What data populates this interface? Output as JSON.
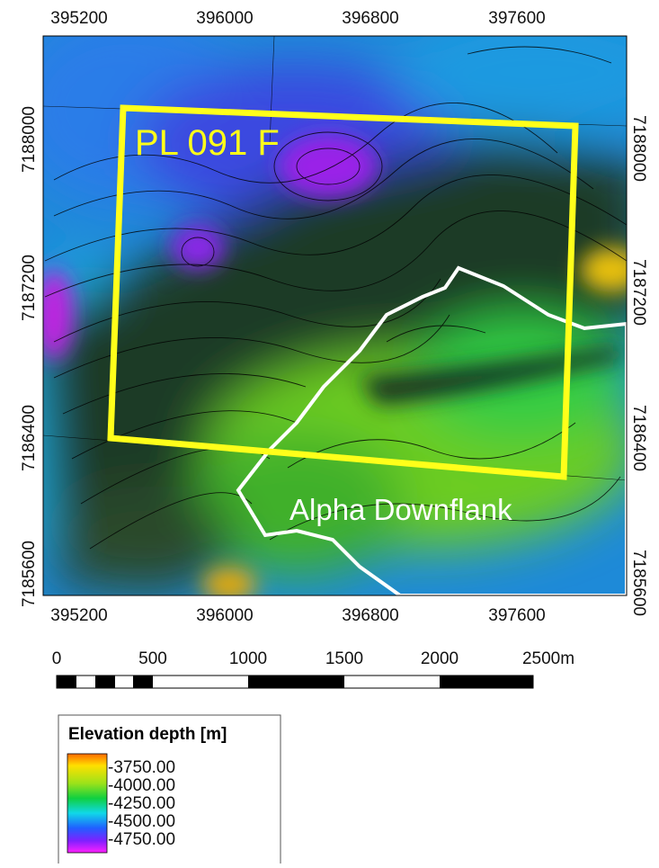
{
  "map": {
    "x_ticks": [
      "395200",
      "396000",
      "396800",
      "397600"
    ],
    "y_ticks": [
      "7188000",
      "7187200",
      "7186400",
      "7185600"
    ],
    "labels": {
      "license": "PL 091 F",
      "area": "Alpha Downflank"
    },
    "scale_bar": [
      "0",
      "500",
      "1000",
      "1500",
      "2000",
      "2500m"
    ],
    "legend": {
      "title": "Elevation depth [m]",
      "entries": [
        "-3750.00",
        "-4000.00",
        "-4250.00",
        "-4500.00",
        "-4750.00"
      ]
    }
  }
}
